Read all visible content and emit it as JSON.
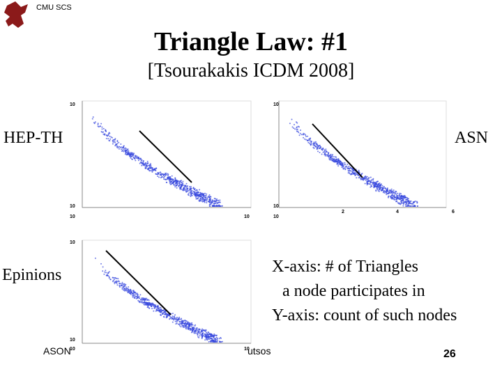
{
  "header": {
    "org": "CMU SCS",
    "title": "Triangle Law: #1",
    "subtitle": "[Tsourakakis ICDM 2008]"
  },
  "plots": [
    {
      "label": "HEP-TH",
      "ticks": [
        "10",
        "10",
        "10",
        "10"
      ]
    },
    {
      "label": "ASN",
      "ticks": [
        "10",
        "10",
        "10",
        "2",
        "4",
        "6"
      ]
    },
    {
      "label": "Epinions",
      "ticks": [
        "10",
        "10",
        "10",
        "10"
      ]
    }
  ],
  "note": [
    "X-axis: # of Triangles",
    "a node participates in",
    "Y-axis: count of such nodes"
  ],
  "footer": {
    "left": "ASON",
    "middle": "utsos",
    "page": "26"
  }
}
